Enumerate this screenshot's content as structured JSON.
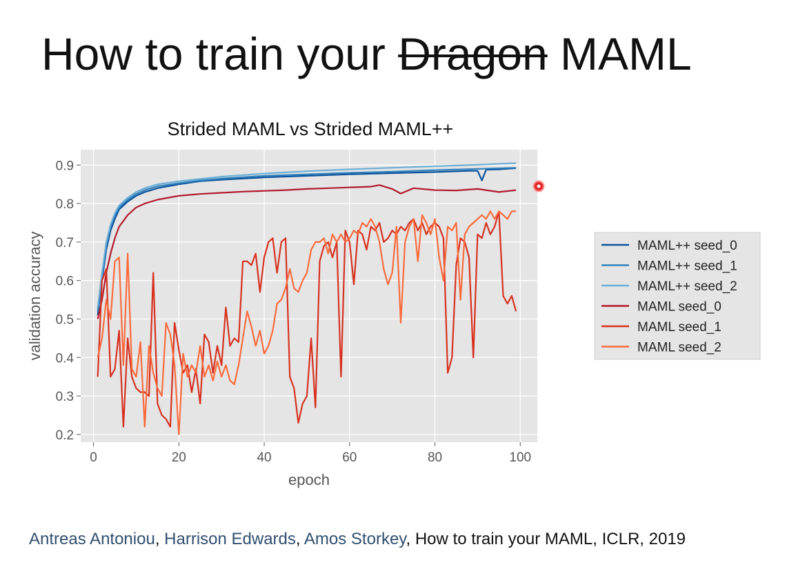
{
  "slide": {
    "title_pre": "How to train your ",
    "title_strike": "Dragon",
    "title_post": " MAML",
    "reference": {
      "authors": [
        "Antreas Antoniou",
        "Harrison Edwards",
        "Amos Storkey"
      ],
      "separator": ", ",
      "rest": ", How to train your MAML, ICLR, 2019"
    }
  },
  "chart_data": {
    "type": "line",
    "title": "Strided MAML vs Strided MAML++",
    "xlabel": "epoch",
    "ylabel": "validation accuracy",
    "xlim": [
      -3,
      104
    ],
    "ylim": [
      0.18,
      0.94
    ],
    "xticks": [
      0,
      20,
      40,
      60,
      80,
      100
    ],
    "yticks": [
      0.2,
      0.3,
      0.4,
      0.5,
      0.6,
      0.7,
      0.8,
      0.9
    ],
    "grid": true,
    "legend_position": "outside-right",
    "colors": {
      "plot_background": "#e5e5e5",
      "grid": "#ffffff"
    },
    "series": [
      {
        "name": "MAML++ seed_0",
        "color": "#08519c",
        "x": [
          1,
          2,
          3,
          4,
          5,
          6,
          8,
          10,
          12,
          15,
          20,
          25,
          30,
          40,
          50,
          60,
          70,
          80,
          88,
          90,
          91,
          92,
          95,
          99
        ],
        "y": [
          0.51,
          0.6,
          0.68,
          0.73,
          0.76,
          0.785,
          0.805,
          0.82,
          0.83,
          0.84,
          0.85,
          0.858,
          0.862,
          0.868,
          0.872,
          0.876,
          0.879,
          0.882,
          0.885,
          0.885,
          0.86,
          0.888,
          0.889,
          0.892
        ]
      },
      {
        "name": "MAML++ seed_1",
        "color": "#3182bd",
        "x": [
          1,
          2,
          3,
          4,
          5,
          6,
          8,
          10,
          12,
          15,
          20,
          25,
          30,
          40,
          50,
          60,
          70,
          80,
          90,
          99
        ],
        "y": [
          0.52,
          0.61,
          0.69,
          0.74,
          0.77,
          0.79,
          0.81,
          0.825,
          0.835,
          0.845,
          0.853,
          0.86,
          0.865,
          0.872,
          0.876,
          0.88,
          0.883,
          0.887,
          0.89,
          0.893
        ]
      },
      {
        "name": "MAML++ seed_2",
        "color": "#6baed6",
        "x": [
          1,
          2,
          3,
          4,
          5,
          6,
          8,
          10,
          12,
          15,
          20,
          25,
          30,
          40,
          50,
          60,
          70,
          80,
          90,
          99
        ],
        "y": [
          0.53,
          0.62,
          0.7,
          0.745,
          0.775,
          0.795,
          0.815,
          0.83,
          0.84,
          0.85,
          0.858,
          0.864,
          0.87,
          0.878,
          0.884,
          0.889,
          0.893,
          0.897,
          0.901,
          0.905
        ]
      },
      {
        "name": "MAML seed_0",
        "color": "#b2182b",
        "x": [
          1,
          2,
          3,
          4,
          5,
          6,
          8,
          10,
          12,
          15,
          20,
          25,
          30,
          35,
          40,
          45,
          50,
          55,
          60,
          65,
          67,
          70,
          72,
          75,
          80,
          85,
          90,
          95,
          99
        ],
        "y": [
          0.5,
          0.55,
          0.62,
          0.67,
          0.71,
          0.74,
          0.77,
          0.79,
          0.8,
          0.81,
          0.82,
          0.825,
          0.828,
          0.831,
          0.833,
          0.835,
          0.838,
          0.84,
          0.842,
          0.844,
          0.848,
          0.838,
          0.826,
          0.84,
          0.835,
          0.834,
          0.838,
          0.83,
          0.835
        ]
      },
      {
        "name": "MAML seed_1",
        "color": "#d7301f",
        "x": [
          1,
          2,
          3,
          4,
          5,
          6,
          7,
          8,
          9,
          10,
          11,
          12,
          13,
          14,
          15,
          16,
          17,
          18,
          19,
          20,
          21,
          22,
          23,
          24,
          25,
          26,
          27,
          28,
          29,
          30,
          31,
          32,
          33,
          34,
          35,
          36,
          37,
          38,
          39,
          40,
          41,
          42,
          43,
          44,
          45,
          46,
          47,
          48,
          49,
          50,
          51,
          52,
          53,
          54,
          55,
          56,
          57,
          58,
          59,
          60,
          61,
          62,
          63,
          64,
          65,
          66,
          67,
          68,
          69,
          70,
          71,
          72,
          73,
          74,
          75,
          76,
          77,
          78,
          79,
          80,
          81,
          82,
          83,
          84,
          85,
          86,
          87,
          88,
          89,
          90,
          91,
          92,
          93,
          94,
          95,
          96,
          97,
          98,
          99
        ],
        "y": [
          0.35,
          0.6,
          0.63,
          0.35,
          0.37,
          0.47,
          0.22,
          0.45,
          0.35,
          0.32,
          0.31,
          0.31,
          0.3,
          0.62,
          0.28,
          0.25,
          0.24,
          0.22,
          0.49,
          0.42,
          0.36,
          0.38,
          0.31,
          0.37,
          0.28,
          0.46,
          0.44,
          0.36,
          0.43,
          0.38,
          0.53,
          0.43,
          0.45,
          0.44,
          0.65,
          0.65,
          0.64,
          0.67,
          0.57,
          0.66,
          0.7,
          0.71,
          0.62,
          0.7,
          0.71,
          0.35,
          0.32,
          0.23,
          0.28,
          0.3,
          0.45,
          0.27,
          0.65,
          0.69,
          0.7,
          0.66,
          0.7,
          0.35,
          0.73,
          0.7,
          0.59,
          0.73,
          0.72,
          0.68,
          0.74,
          0.73,
          0.75,
          0.7,
          0.71,
          0.73,
          0.72,
          0.74,
          0.73,
          0.75,
          0.76,
          0.73,
          0.75,
          0.72,
          0.74,
          0.75,
          0.74,
          0.71,
          0.36,
          0.4,
          0.64,
          0.71,
          0.7,
          0.66,
          0.4,
          0.72,
          0.71,
          0.75,
          0.72,
          0.74,
          0.78,
          0.56,
          0.54,
          0.56,
          0.52
        ]
      },
      {
        "name": "MAML seed_2",
        "color": "#fc6a3b",
        "x": [
          1,
          2,
          3,
          4,
          5,
          6,
          7,
          8,
          9,
          10,
          11,
          12,
          13,
          14,
          15,
          16,
          17,
          18,
          19,
          20,
          21,
          22,
          23,
          24,
          25,
          26,
          27,
          28,
          29,
          30,
          31,
          32,
          33,
          34,
          35,
          36,
          37,
          38,
          39,
          40,
          41,
          42,
          43,
          44,
          45,
          46,
          47,
          48,
          49,
          50,
          51,
          52,
          53,
          54,
          55,
          56,
          57,
          58,
          59,
          60,
          61,
          62,
          63,
          64,
          65,
          66,
          67,
          68,
          69,
          70,
          71,
          72,
          73,
          74,
          75,
          76,
          77,
          78,
          79,
          80,
          81,
          82,
          83,
          84,
          85,
          86,
          87,
          88,
          89,
          90,
          91,
          92,
          93,
          94,
          95,
          96,
          97,
          98,
          99
        ],
        "y": [
          0.4,
          0.45,
          0.55,
          0.5,
          0.65,
          0.66,
          0.38,
          0.67,
          0.37,
          0.35,
          0.44,
          0.22,
          0.43,
          0.36,
          0.32,
          0.3,
          0.49,
          0.46,
          0.38,
          0.2,
          0.41,
          0.35,
          0.38,
          0.36,
          0.43,
          0.35,
          0.38,
          0.34,
          0.39,
          0.35,
          0.38,
          0.34,
          0.33,
          0.38,
          0.45,
          0.52,
          0.48,
          0.43,
          0.47,
          0.41,
          0.43,
          0.47,
          0.54,
          0.55,
          0.58,
          0.63,
          0.58,
          0.57,
          0.6,
          0.62,
          0.68,
          0.7,
          0.7,
          0.71,
          0.67,
          0.72,
          0.7,
          0.72,
          0.7,
          0.71,
          0.73,
          0.72,
          0.75,
          0.74,
          0.76,
          0.74,
          0.7,
          0.63,
          0.59,
          0.62,
          0.74,
          0.49,
          0.7,
          0.74,
          0.76,
          0.65,
          0.77,
          0.75,
          0.72,
          0.76,
          0.66,
          0.6,
          0.74,
          0.73,
          0.75,
          0.55,
          0.72,
          0.74,
          0.75,
          0.76,
          0.77,
          0.76,
          0.78,
          0.76,
          0.78,
          0.77,
          0.76,
          0.78,
          0.78
        ]
      }
    ]
  }
}
